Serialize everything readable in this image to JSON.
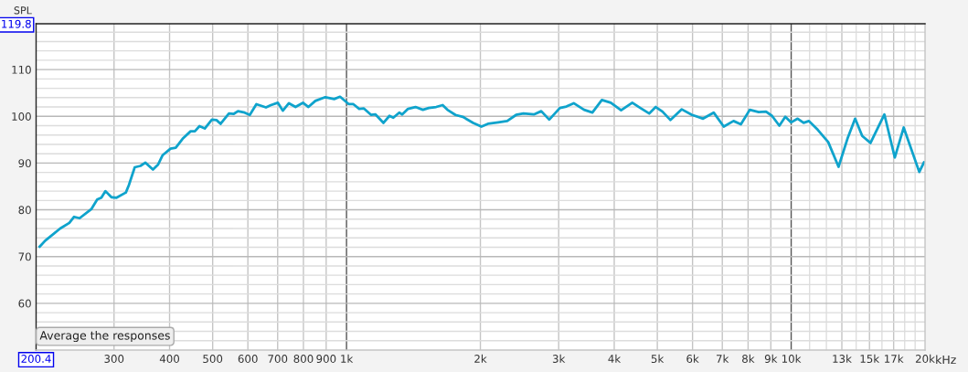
{
  "chart_data": {
    "type": "line",
    "ylabel": "SPL",
    "xlabel": "kHz",
    "annotations": [
      "Average the responses"
    ],
    "log": "x",
    "grid": true,
    "marker": "none",
    "line_style": "solid",
    "xlim": [
      200.4,
      20000
    ],
    "ylim": [
      50,
      119.8
    ],
    "xticks": [
      {
        "value": 200.4,
        "label": "200.4"
      },
      300,
      400,
      500,
      600,
      700,
      800,
      900,
      {
        "value": 1000,
        "label": "1k"
      },
      {
        "value": 2000,
        "label": "2k"
      },
      {
        "value": 3000,
        "label": "3k"
      },
      {
        "value": 4000,
        "label": "4k"
      },
      {
        "value": 5000,
        "label": "5k"
      },
      {
        "value": 6000,
        "label": "6k"
      },
      {
        "value": 7000,
        "label": "7k"
      },
      {
        "value": 8000,
        "label": "8k"
      },
      {
        "value": 9000,
        "label": "9k"
      },
      {
        "value": 10000,
        "label": "10k"
      },
      {
        "value": 11000,
        "label": null
      },
      {
        "value": 12000,
        "label": null
      },
      {
        "value": 13000,
        "label": "13k"
      },
      {
        "value": 14000,
        "label": null
      },
      {
        "value": 15000,
        "label": "15k"
      },
      {
        "value": 16000,
        "label": null
      },
      {
        "value": 17000,
        "label": "17k"
      },
      {
        "value": 18000,
        "label": null
      },
      {
        "value": 19000,
        "label": null
      },
      {
        "value": 20000,
        "label": "20k"
      }
    ],
    "yticks": [
      {
        "value": 52,
        "label": null
      },
      {
        "value": 54,
        "label": null
      },
      {
        "value": 56,
        "label": null
      },
      {
        "value": 58,
        "label": null
      },
      60,
      {
        "value": 62,
        "label": null
      },
      {
        "value": 64,
        "label": null
      },
      {
        "value": 66,
        "label": null
      },
      {
        "value": 68,
        "label": null
      },
      70,
      {
        "value": 72,
        "label": null
      },
      {
        "value": 74,
        "label": null
      },
      {
        "value": 76,
        "label": null
      },
      {
        "value": 78,
        "label": null
      },
      80,
      {
        "value": 82,
        "label": null
      },
      {
        "value": 84,
        "label": null
      },
      {
        "value": 86,
        "label": null
      },
      {
        "value": 88,
        "label": null
      },
      90,
      {
        "value": 92,
        "label": null
      },
      {
        "value": 94,
        "label": null
      },
      {
        "value": 96,
        "label": null
      },
      {
        "value": 98,
        "label": null
      },
      100,
      {
        "value": 102,
        "label": null
      },
      {
        "value": 104,
        "label": null
      },
      {
        "value": 106,
        "label": null
      },
      {
        "value": 108,
        "label": null
      },
      110,
      {
        "value": 112,
        "label": null
      },
      {
        "value": 114,
        "label": null
      },
      {
        "value": 116,
        "label": null
      },
      {
        "value": 118,
        "label": null
      },
      {
        "value": 119.8,
        "label": "119.8"
      }
    ],
    "series": [
      {
        "color": "#0fa3cc",
        "x": [
          204,
          210,
          227,
          238,
          244,
          251,
          267,
          275,
          281,
          287,
          296,
          304,
          319,
          324,
          334,
          344,
          353,
          367,
          377,
          386,
          402,
          413,
          428,
          446,
          456,
          467,
          480,
          498,
          510,
          521,
          544,
          557,
          570,
          590,
          606,
          627,
          659,
          676,
          701,
          719,
          742,
          768,
          798,
          821,
          851,
          896,
          938,
          967,
          1012,
          1036,
          1068,
          1093,
          1136,
          1162,
          1211,
          1249,
          1274,
          1314,
          1334,
          1375,
          1429,
          1485,
          1531,
          1591,
          1645,
          1686,
          1758,
          1826,
          1927,
          2011,
          2080,
          2194,
          2298,
          2406,
          2499,
          2638,
          2741,
          2857,
          3019,
          3122,
          3243,
          3422,
          3572,
          3752,
          3929,
          4145,
          4392,
          4579,
          4793,
          4959,
          5136,
          5352,
          5675,
          5984,
          6336,
          6694,
          7053,
          7418,
          7707,
          8070,
          8451,
          8780,
          9054,
          9406,
          9700,
          10000,
          10342,
          10665,
          10962,
          11478,
          11891,
          12112,
          12780,
          13382,
          13926,
          14446,
          15079,
          16205,
          17100,
          17906,
          19412,
          19900
        ],
        "values": [
          72.1,
          73.4,
          76.0,
          77.2,
          78.5,
          78.2,
          80.2,
          82.2,
          82.6,
          84.0,
          82.7,
          82.6,
          83.7,
          85.3,
          89.1,
          89.4,
          90.1,
          88.6,
          89.7,
          91.7,
          93.1,
          93.3,
          95.2,
          96.8,
          96.8,
          97.9,
          97.4,
          99.3,
          99.2,
          98.4,
          100.6,
          100.5,
          101.1,
          100.8,
          100.3,
          102.6,
          101.9,
          102.4,
          102.9,
          101.2,
          102.8,
          102.0,
          102.9,
          102.0,
          103.3,
          104.1,
          103.7,
          104.2,
          102.6,
          102.6,
          101.6,
          101.7,
          100.3,
          100.4,
          98.6,
          100.1,
          99.7,
          100.8,
          100.4,
          101.6,
          102.0,
          101.4,
          101.8,
          102.0,
          102.4,
          101.4,
          100.3,
          99.9,
          98.6,
          97.8,
          98.4,
          98.7,
          99.0,
          100.3,
          100.6,
          100.4,
          101.1,
          99.3,
          101.8,
          102.1,
          102.8,
          101.4,
          100.8,
          103.5,
          102.9,
          101.3,
          102.9,
          101.8,
          100.6,
          102.0,
          101.0,
          99.2,
          101.5,
          100.3,
          99.5,
          100.8,
          97.8,
          99.0,
          98.3,
          101.4,
          100.9,
          101.0,
          100.1,
          98.0,
          99.9,
          98.7,
          99.5,
          98.6,
          99.0,
          97.1,
          95.4,
          94.5,
          89.2,
          95.2,
          99.5,
          95.8,
          94.3,
          100.4,
          91.2,
          97.6,
          88.1,
          90.2
        ]
      }
    ]
  }
}
